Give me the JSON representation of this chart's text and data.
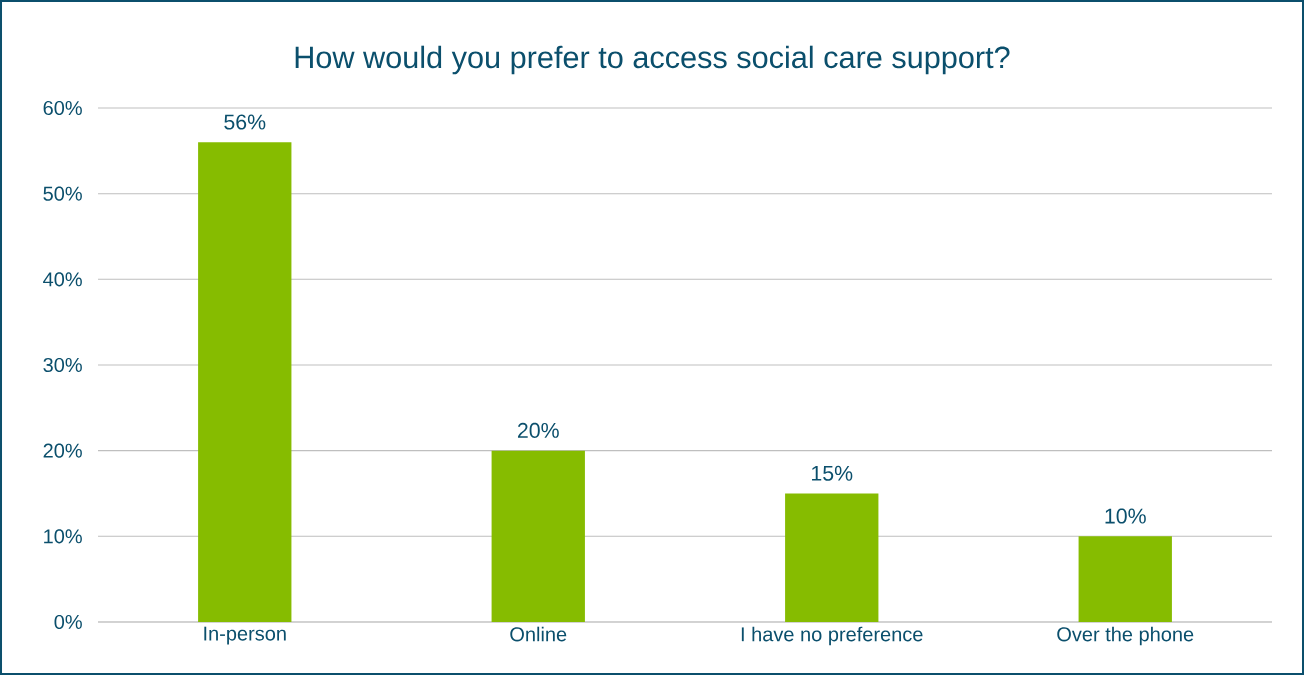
{
  "chart_data": {
    "type": "bar",
    "title": "How would you prefer to access social care support?",
    "categories": [
      "In-person",
      "Online",
      "I have no preference",
      "Over the phone"
    ],
    "values": [
      56,
      20,
      15,
      10
    ],
    "value_labels": [
      "56%",
      "20%",
      "15%",
      "10%"
    ],
    "color": "#86bc00",
    "ylim": [
      0,
      60
    ],
    "yticks": [
      {
        "value": 0,
        "label": "0%"
      },
      {
        "value": 10,
        "label": "10%"
      },
      {
        "value": 20,
        "label": "20%"
      },
      {
        "value": 30,
        "label": "30%"
      },
      {
        "value": 40,
        "label": "40%"
      },
      {
        "value": 50,
        "label": "50%"
      },
      {
        "value": 60,
        "label": "60%"
      }
    ],
    "grid": "y"
  }
}
